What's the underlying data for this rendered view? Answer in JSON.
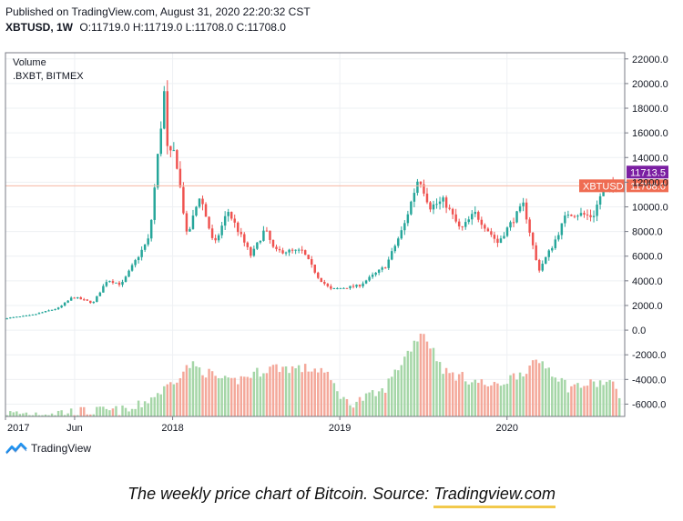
{
  "header": {
    "published": "Published on TradingView.com, August 31, 2020 22:20:32 CST",
    "symbol": "XBTUSD, 1W",
    "ohlc": "O:11719.0 H:11719.0 L:11708.0 C:11708.0"
  },
  "brand": {
    "name": "TradingView",
    "icon": "tradingview-logo-icon"
  },
  "caption": {
    "text": "The weekly price chart of Bitcoin. Source: ",
    "source": "Tradingview.com"
  },
  "colors": {
    "up": "#26a69a",
    "down": "#ef5350",
    "vol_up": "#a5d6a7",
    "vol_down": "#f4a89a",
    "price_line": "#f7b7a3",
    "label_xbt": "#ef6c52",
    "label_alt": "#7b1fa2",
    "axis_text": "#131722"
  },
  "chart_data": {
    "type": "candlestick",
    "title": "XBTUSD, 1W",
    "legend": [
      "Volume",
      ".BXBT, BITMEX"
    ],
    "legend_position": "top-left",
    "y_axis": {
      "position": "right",
      "range": [
        -7000,
        22500
      ],
      "ticks": [
        "22000.0",
        "20000.0",
        "18000.0",
        "16000.0",
        "14000.0",
        "12000.0",
        "10000.0",
        "8000.0",
        "6000.0",
        "4000.0",
        "2000.0",
        "0.0",
        "-2000.0",
        "-4000.0",
        "-6000.0"
      ],
      "tick_values": [
        22000,
        20000,
        18000,
        16000,
        14000,
        12000,
        10000,
        8000,
        6000,
        4000,
        2000,
        0,
        -2000,
        -4000,
        -6000
      ]
    },
    "x_axis": {
      "ticks": [
        "2017",
        "Jun",
        "2018",
        "2019",
        "2020"
      ],
      "tick_dates": [
        "2017-01-01",
        "2017-06-01",
        "2018-01-01",
        "2019-01-01",
        "2020-01-01"
      ],
      "range": [
        "2017-01-01",
        "2020-09-14"
      ]
    },
    "price_labels": [
      {
        "text": "11713.5",
        "value": 11713.5,
        "series": "alt"
      },
      {
        "text": "XBTUSD",
        "value": 11708.0,
        "series": "xbt"
      },
      {
        "text": "11708.0",
        "value": 11708.0,
        "series": "xbt"
      }
    ],
    "current_price": 11708.0,
    "price_anchors": [
      [
        "2017-01-01",
        950
      ],
      [
        "2017-03-01",
        1200
      ],
      [
        "2017-05-01",
        1800
      ],
      [
        "2017-06-01",
        2700
      ],
      [
        "2017-07-15",
        2200
      ],
      [
        "2017-08-15",
        4100
      ],
      [
        "2017-09-15",
        3700
      ],
      [
        "2017-10-15",
        5600
      ],
      [
        "2017-11-15",
        7500
      ],
      [
        "2017-12-17",
        19200
      ],
      [
        "2017-12-25",
        14000
      ],
      [
        "2018-01-10",
        14500
      ],
      [
        "2018-02-05",
        7500
      ],
      [
        "2018-03-05",
        11000
      ],
      [
        "2018-04-05",
        6800
      ],
      [
        "2018-05-05",
        9700
      ],
      [
        "2018-06-25",
        6000
      ],
      [
        "2018-07-25",
        8200
      ],
      [
        "2018-08-15",
        6400
      ],
      [
        "2018-10-15",
        6400
      ],
      [
        "2018-11-20",
        4200
      ],
      [
        "2018-12-15",
        3300
      ],
      [
        "2019-02-15",
        3600
      ],
      [
        "2019-04-15",
        5200
      ],
      [
        "2019-05-25",
        8500
      ],
      [
        "2019-06-26",
        12500
      ],
      [
        "2019-07-20",
        10000
      ],
      [
        "2019-08-20",
        10500
      ],
      [
        "2019-09-25",
        8100
      ],
      [
        "2019-10-26",
        9500
      ],
      [
        "2019-12-15",
        7100
      ],
      [
        "2020-02-10",
        10200
      ],
      [
        "2020-03-13",
        4800
      ],
      [
        "2020-04-15",
        7000
      ],
      [
        "2020-05-15",
        9500
      ],
      [
        "2020-06-15",
        9400
      ],
      [
        "2020-07-10",
        9200
      ],
      [
        "2020-08-01",
        11500
      ],
      [
        "2020-08-31",
        11708
      ]
    ],
    "volume_anchors": [
      [
        "2017-01-01",
        -6800
      ],
      [
        "2017-10-01",
        -6500
      ],
      [
        "2017-12-10",
        -4800
      ],
      [
        "2018-02-05",
        -2800
      ],
      [
        "2018-05-01",
        -4300
      ],
      [
        "2018-08-01",
        -3000
      ],
      [
        "2018-11-20",
        -3200
      ],
      [
        "2019-01-15",
        -6000
      ],
      [
        "2019-04-01",
        -5000
      ],
      [
        "2019-06-26",
        0
      ],
      [
        "2019-08-15",
        -3400
      ],
      [
        "2019-12-01",
        -4600
      ],
      [
        "2020-03-13",
        -2500
      ],
      [
        "2020-05-10",
        -4600
      ],
      [
        "2020-08-10",
        -4200
      ],
      [
        "2020-08-31",
        -5400
      ]
    ]
  }
}
